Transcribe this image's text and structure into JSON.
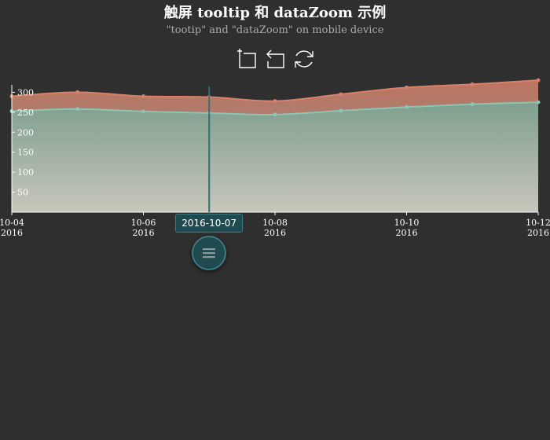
{
  "header": {
    "title": "触屏 tooltip 和 dataZoom 示例",
    "subtitle": "\"tootip\" and \"dataZoom\" on mobile device"
  },
  "toolbox": {
    "items": [
      {
        "name": "data-zoom-select",
        "icon": "crop-zoom-icon"
      },
      {
        "name": "data-zoom-back",
        "icon": "undo-arrow-icon"
      },
      {
        "name": "restore",
        "icon": "refresh-icon"
      }
    ]
  },
  "tooltip": {
    "label": "2016-10-07"
  },
  "colors": {
    "background": "#2f2f2f",
    "series1_line": "#d7806a",
    "series2_line": "#8cc5b4",
    "axis": "#ffffff",
    "pointer": "#2e6e74"
  },
  "chart_data": {
    "type": "area",
    "title": "触屏 tooltip 和 dataZoom 示例",
    "subtitle": "\"tootip\" and \"dataZoom\" on mobile device",
    "x": [
      "2016-10-04",
      "2016-10-05",
      "2016-10-06",
      "2016-10-07",
      "2016-10-08",
      "2016-10-09",
      "2016-10-10",
      "2016-10-11",
      "2016-10-12"
    ],
    "x_tick_labels": [
      {
        "date": "2016-10-04",
        "line1": "10-04",
        "line2": "2016"
      },
      {
        "date": "2016-10-06",
        "line1": "10-06",
        "line2": "2016"
      },
      {
        "date": "2016-10-08",
        "line1": "10-08",
        "line2": "2016"
      },
      {
        "date": "2016-10-10",
        "line1": "10-10",
        "line2": "2016"
      },
      {
        "date": "2016-10-12",
        "line1": "10-12",
        "line2": "2016"
      }
    ],
    "series": [
      {
        "values": [
          290,
          300,
          290,
          288,
          278,
          295,
          312,
          320,
          330
        ]
      },
      {
        "values": [
          253,
          258,
          252,
          248,
          244,
          254,
          263,
          270,
          275
        ]
      }
    ],
    "y_ticks": [
      50,
      100,
      150,
      200,
      250,
      300
    ],
    "ylim": [
      0,
      350
    ],
    "grid": false,
    "pointer_date": "2016-10-07"
  }
}
